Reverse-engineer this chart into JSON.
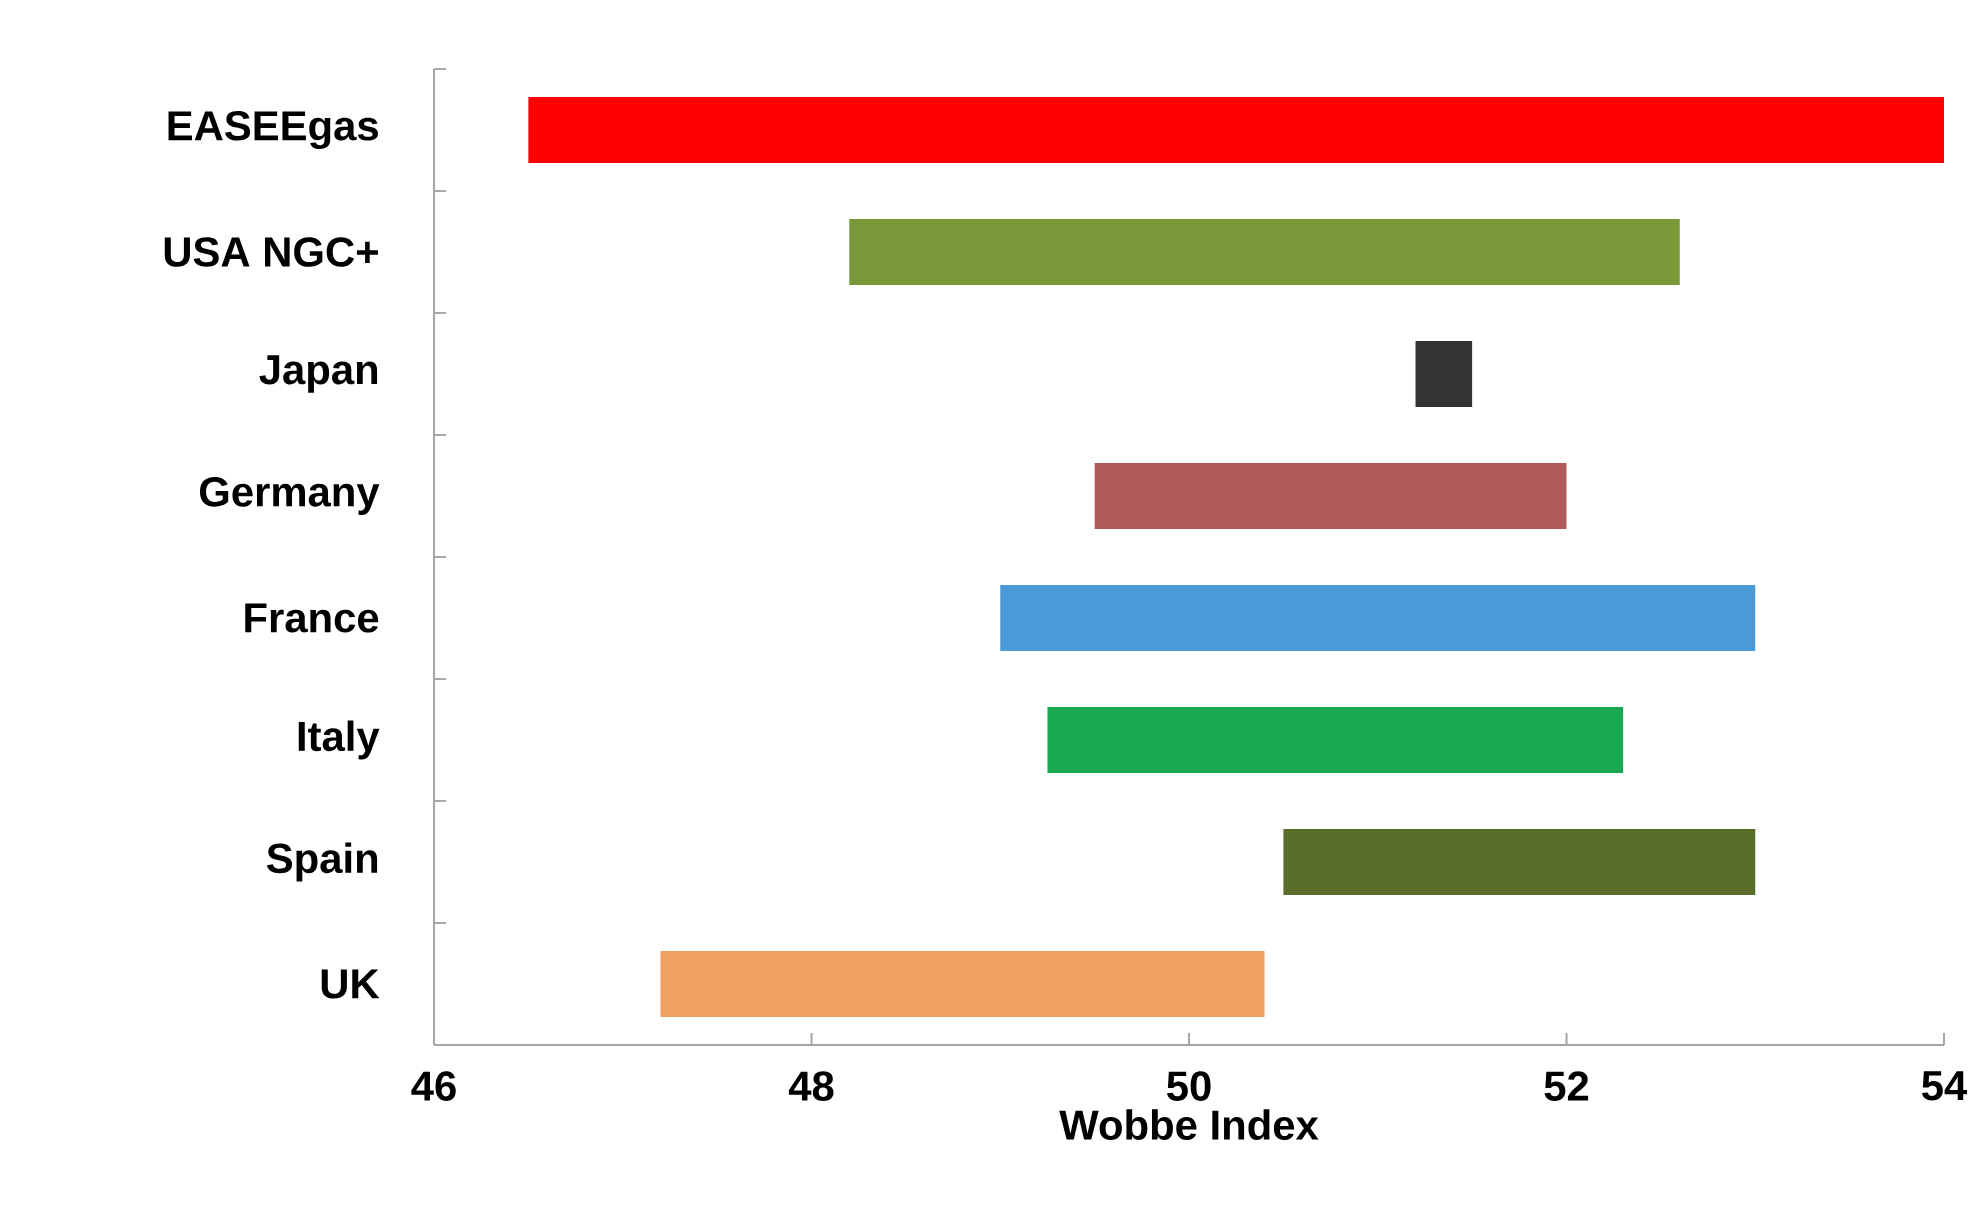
{
  "chart_data": {
    "type": "bar",
    "orientation": "horizontal",
    "xlabel": "Wobbe Index",
    "categories": [
      "EASEEgas",
      "USA NGC+",
      "Japan",
      "Germany",
      "France",
      "Italy",
      "Spain",
      "UK"
    ],
    "base": [
      46.5,
      48.2,
      51.2,
      49.5,
      49,
      49.25,
      50.5,
      47.2
    ],
    "values": [
      7.5,
      4.4,
      0.3,
      2.5,
      4,
      3.05,
      2.5,
      3.2
    ],
    "colors": [
      "#ff0000",
      "#7a9a3a",
      "#333333",
      "#b05a5a",
      "#4a9ad8",
      "#1aa850",
      "#5a6e2a",
      "#f0a060"
    ],
    "xlim": [
      46,
      54
    ],
    "xticks": [
      46,
      48,
      50,
      52,
      54
    ]
  }
}
